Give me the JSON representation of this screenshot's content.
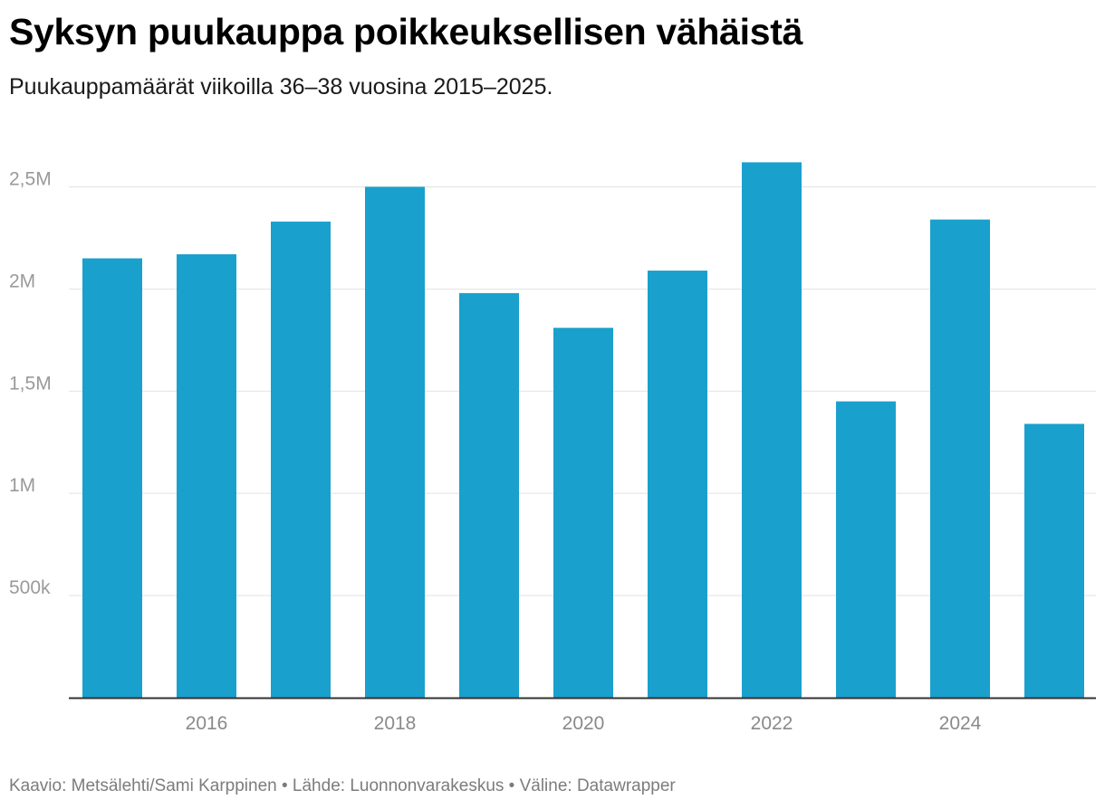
{
  "header": {
    "title": "Syksyn puukauppa poikkeuksellisen vähäistä",
    "subtitle": "Puukauppamäärät viikoilla 36–38 vuosina 2015–2025."
  },
  "footer": {
    "credit": "Kaavio: Metsälehti/Sami Karppinen • Lähde: Luonnonvarakeskus • Väline: Datawrapper"
  },
  "chart_data": {
    "type": "bar",
    "title": "Syksyn puukauppa poikkeuksellisen vähäistä",
    "subtitle": "Puukauppamäärät viikoilla 36–38 vuosina 2015–2025.",
    "categories": [
      2015,
      2016,
      2017,
      2018,
      2019,
      2020,
      2021,
      2022,
      2023,
      2024,
      2025
    ],
    "values": [
      2150000,
      2170000,
      2330000,
      2500000,
      1980000,
      1810000,
      2090000,
      2620000,
      1450000,
      2340000,
      1340000
    ],
    "x_tick_labels": [
      "2016",
      "2018",
      "2020",
      "2022",
      "2024"
    ],
    "x_tick_values": [
      2016,
      2018,
      2020,
      2022,
      2024
    ],
    "y_tick_labels": [
      "500k",
      "1M",
      "1,5M",
      "2M",
      "2,5M"
    ],
    "y_tick_values": [
      500000,
      1000000,
      1500000,
      2000000,
      2500000
    ],
    "ylim": [
      0,
      2750000
    ],
    "xlabel": "",
    "ylabel": "",
    "grid": true,
    "bar_color": "#1aa0cd"
  }
}
